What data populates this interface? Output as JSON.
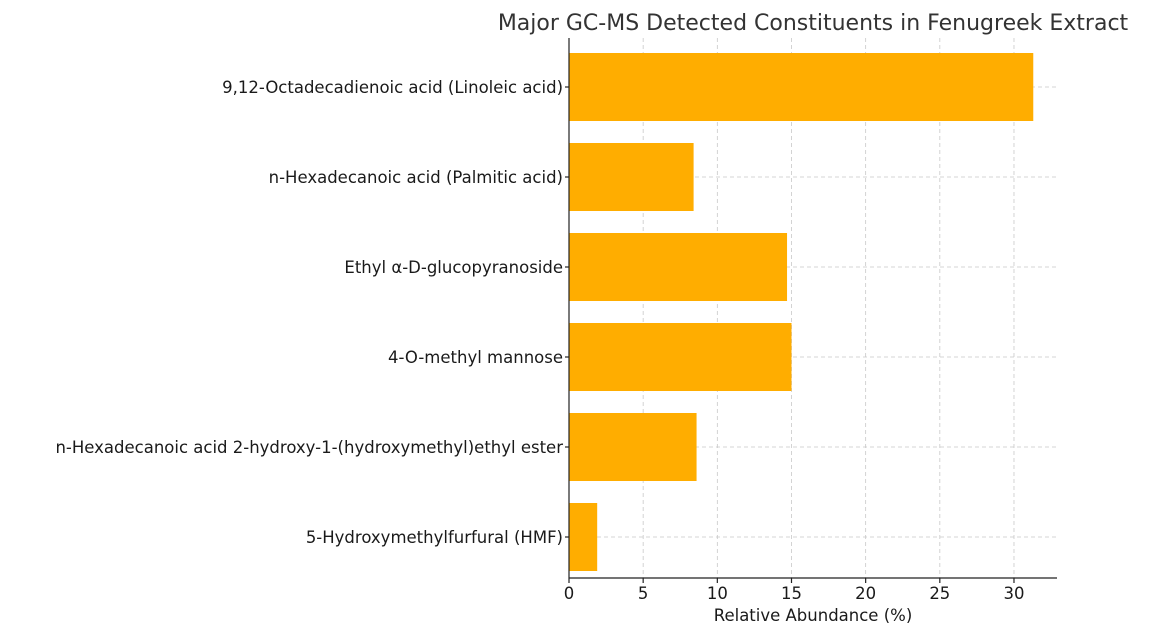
{
  "chart_data": {
    "type": "bar",
    "orientation": "horizontal",
    "title": "Major GC-MS Detected Constituents in Fenugreek Extract",
    "xlabel": "Relative Abundance (%)",
    "ylabel": "",
    "categories": [
      "9,12-Octadecadienoic acid (Linoleic acid)",
      "n-Hexadecanoic acid (Palmitic acid)",
      "Ethyl α-D-glucopyranoside",
      "4-O-methyl mannose",
      "n-Hexadecanoic acid 2-hydroxy-1-(hydroxymethyl)ethyl ester",
      "5-Hydroxymethylfurfural (HMF)"
    ],
    "values": [
      31.3,
      8.4,
      14.7,
      15.0,
      8.6,
      1.9
    ],
    "xlim": [
      0,
      32.9
    ],
    "xticks": [
      0,
      5,
      10,
      15,
      20,
      25,
      30
    ],
    "xtick_labels": [
      "0",
      "5",
      "10",
      "15",
      "20",
      "25",
      "30"
    ],
    "grid": true,
    "bar_color": "#FFAD00"
  }
}
